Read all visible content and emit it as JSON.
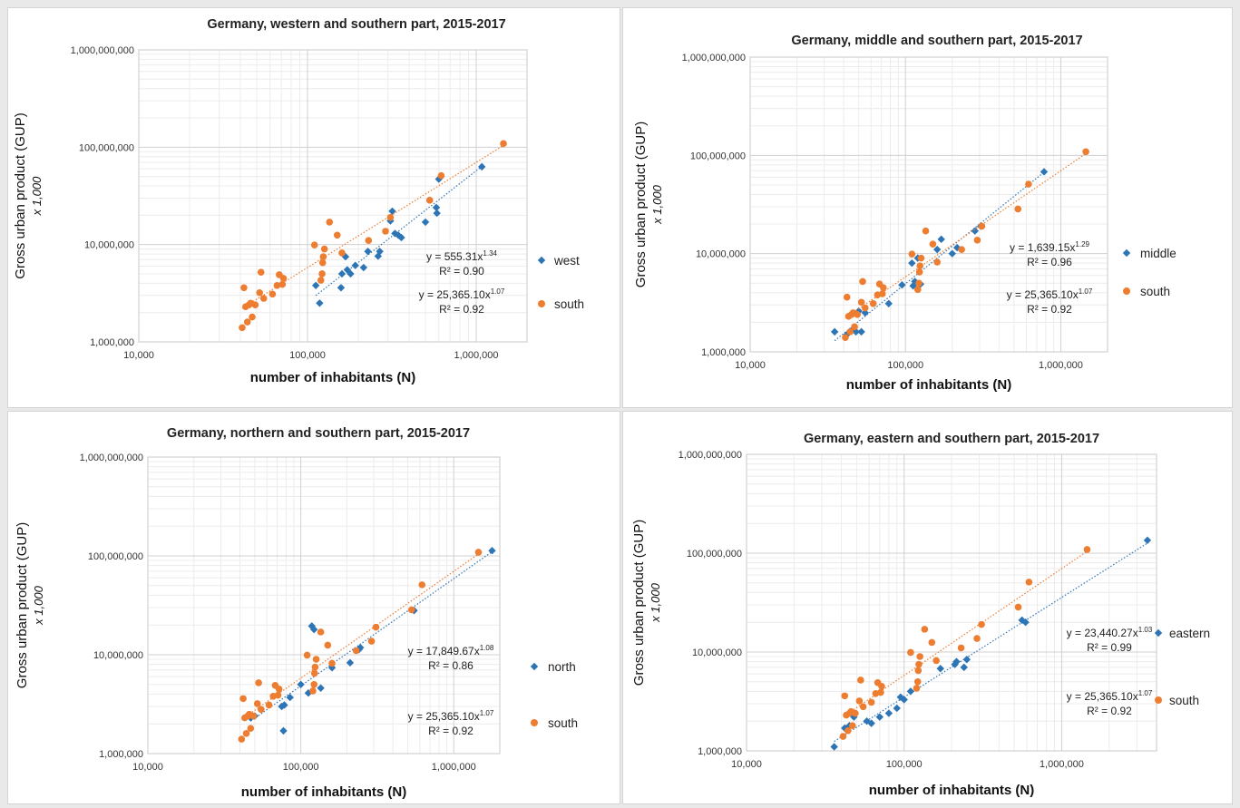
{
  "colors": {
    "series1": "#2e75b6",
    "series2": "#ed7d31",
    "grid_major": "#d0d0d0",
    "grid_minor": "#ececec"
  },
  "chart_data": [
    {
      "type": "scatter",
      "title": "Germany, western and southern part, 2015-2017",
      "xlabel": "number of inhabitants (N)",
      "ylabel": "Gross urban product (GUP)",
      "ylabel_sub": "x 1,000",
      "x_scale": "log",
      "y_scale": "log",
      "xlim": [
        10000,
        2000000
      ],
      "ylim": [
        1000000,
        1000000000
      ],
      "x_ticks": [
        "10,000",
        "100,000",
        "1,000,000"
      ],
      "y_ticks": [
        "1,000,000",
        "10,000,000",
        "100,000,000",
        "1,000,000,000"
      ],
      "legend_position": "right",
      "series": [
        {
          "name": "west",
          "marker": "diamond",
          "trend": "power",
          "equation": "y = 555.31x",
          "exponent": "1.34",
          "r2": "R² = 0.90",
          "points": [
            [
              112000,
              3800000
            ],
            [
              118000,
              2500000
            ],
            [
              158000,
              3600000
            ],
            [
              160000,
              5000000
            ],
            [
              168000,
              7500000
            ],
            [
              172000,
              5500000
            ],
            [
              180000,
              5000000
            ],
            [
              192000,
              6100000
            ],
            [
              215000,
              5800000
            ],
            [
              228000,
              8500000
            ],
            [
              262000,
              7600000
            ],
            [
              268000,
              8500000
            ],
            [
              310000,
              17500000
            ],
            [
              318000,
              22000000
            ],
            [
              330000,
              13000000
            ],
            [
              345000,
              12500000
            ],
            [
              360000,
              11800000
            ],
            [
              500000,
              17000000
            ],
            [
              580000,
              24000000
            ],
            [
              585000,
              21000000
            ],
            [
              600000,
              47000000
            ],
            [
              1080000,
              63000000
            ]
          ]
        },
        {
          "name": "south",
          "marker": "circle",
          "trend": "power",
          "equation": "y = 25,365.10x",
          "exponent": "1.07",
          "r2": "R² = 0.92",
          "points": [
            [
              41000,
              1400000
            ],
            [
              42000,
              3600000
            ],
            [
              43000,
              2300000
            ],
            [
              44000,
              1600000
            ],
            [
              45000,
              2400000
            ],
            [
              46000,
              2500000
            ],
            [
              47000,
              1800000
            ],
            [
              49000,
              2400000
            ],
            [
              52000,
              3200000
            ],
            [
              53000,
              5200000
            ],
            [
              55000,
              2800000
            ],
            [
              62000,
              3100000
            ],
            [
              66000,
              3800000
            ],
            [
              68000,
              4900000
            ],
            [
              71000,
              3900000
            ],
            [
              72000,
              4500000
            ],
            [
              110000,
              9900000
            ],
            [
              120000,
              4300000
            ],
            [
              122000,
              5000000
            ],
            [
              123000,
              6500000
            ],
            [
              124000,
              7500000
            ],
            [
              126000,
              9000000
            ],
            [
              135000,
              17000000
            ],
            [
              150000,
              12500000
            ],
            [
              160000,
              8200000
            ],
            [
              230000,
              11000000
            ],
            [
              290000,
              13700000
            ],
            [
              310000,
              19000000
            ],
            [
              530000,
              28500000
            ],
            [
              620000,
              51000000
            ],
            [
              1450000,
              109000000
            ]
          ]
        }
      ]
    },
    {
      "type": "scatter",
      "title": "Germany, middle and southern part, 2015-2017",
      "xlabel": "number of inhabitants (N)",
      "ylabel": "Gross urban product (GUP)",
      "ylabel_sub": "x 1,000",
      "x_scale": "log",
      "y_scale": "log",
      "xlim": [
        10000,
        2000000
      ],
      "ylim": [
        1000000,
        1000000000
      ],
      "x_ticks": [
        "10,000",
        "100,000",
        "1,000,000"
      ],
      "y_ticks": [
        "1,000,000",
        "10,000,000",
        "100,000,000",
        "1,000,000,000"
      ],
      "legend_position": "right",
      "series": [
        {
          "name": "middle",
          "marker": "diamond",
          "trend": "power",
          "equation": "y = 1,639.15x",
          "exponent": "1.29",
          "r2": "R² = 0.96",
          "points": [
            [
              35000,
              1600000
            ],
            [
              42000,
              1500000
            ],
            [
              46000,
              1700000
            ],
            [
              48000,
              1600000
            ],
            [
              50000,
              2600000
            ],
            [
              52000,
              1600000
            ],
            [
              55000,
              2500000
            ],
            [
              78000,
              3100000
            ],
            [
              95000,
              4800000
            ],
            [
              110000,
              8000000
            ],
            [
              112000,
              4700000
            ],
            [
              115000,
              5200000
            ],
            [
              120000,
              9000000
            ],
            [
              125000,
              4900000
            ],
            [
              160000,
              11000000
            ],
            [
              170000,
              14000000
            ],
            [
              200000,
              10000000
            ],
            [
              215000,
              11500000
            ],
            [
              280000,
              17000000
            ],
            [
              305000,
              19000000
            ],
            [
              780000,
              68000000
            ]
          ]
        },
        {
          "name": "south",
          "marker": "circle",
          "trend": "power",
          "equation": "y = 25,365.10x",
          "exponent": "1.07",
          "r2": "R² = 0.92",
          "points": [
            [
              41000,
              1400000
            ],
            [
              42000,
              3600000
            ],
            [
              43000,
              2300000
            ],
            [
              44000,
              1600000
            ],
            [
              45000,
              2400000
            ],
            [
              46000,
              2500000
            ],
            [
              47000,
              1800000
            ],
            [
              49000,
              2400000
            ],
            [
              52000,
              3200000
            ],
            [
              53000,
              5200000
            ],
            [
              55000,
              2800000
            ],
            [
              62000,
              3100000
            ],
            [
              66000,
              3800000
            ],
            [
              68000,
              4900000
            ],
            [
              71000,
              3900000
            ],
            [
              72000,
              4500000
            ],
            [
              110000,
              9900000
            ],
            [
              120000,
              4300000
            ],
            [
              122000,
              5000000
            ],
            [
              123000,
              6500000
            ],
            [
              124000,
              7500000
            ],
            [
              126000,
              9000000
            ],
            [
              135000,
              17000000
            ],
            [
              150000,
              12500000
            ],
            [
              160000,
              8200000
            ],
            [
              230000,
              11000000
            ],
            [
              290000,
              13700000
            ],
            [
              310000,
              19000000
            ],
            [
              530000,
              28500000
            ],
            [
              620000,
              51000000
            ],
            [
              1450000,
              109000000
            ]
          ]
        }
      ]
    },
    {
      "type": "scatter",
      "title": "Germany, northern and southern part, 2015-2017",
      "xlabel": "number of inhabitants (N)",
      "ylabel": "Gross urban product (GUP)",
      "ylabel_sub": "x 1,000",
      "x_scale": "log",
      "y_scale": "log",
      "xlim": [
        10000,
        2000000
      ],
      "ylim": [
        1000000,
        1000000000
      ],
      "x_ticks": [
        "10,000",
        "100,000",
        "1,000,000"
      ],
      "y_ticks": [
        "1,000,000",
        "10,000,000",
        "100,000,000",
        "1,000,000,000"
      ],
      "legend_position": "right",
      "series": [
        {
          "name": "north",
          "marker": "diamond",
          "trend": "power",
          "equation": "y = 17,849.67x",
          "exponent": "1.08",
          "r2": "R² = 0.86",
          "points": [
            [
              47000,
              2300000
            ],
            [
              50000,
              2400000
            ],
            [
              75000,
              3000000
            ],
            [
              77000,
              1700000
            ],
            [
              78000,
              3100000
            ],
            [
              85000,
              3700000
            ],
            [
              100000,
              5000000
            ],
            [
              112000,
              4100000
            ],
            [
              118000,
              19500000
            ],
            [
              122000,
              18000000
            ],
            [
              135000,
              4600000
            ],
            [
              160000,
              7400000
            ],
            [
              210000,
              8300000
            ],
            [
              240000,
              11300000
            ],
            [
              245000,
              11800000
            ],
            [
              550000,
              28000000
            ],
            [
              1780000,
              113000000
            ]
          ]
        },
        {
          "name": "south",
          "marker": "circle",
          "trend": "power",
          "equation": "y = 25,365.10x",
          "exponent": "1.07",
          "r2": "R² = 0.92",
          "points": [
            [
              41000,
              1400000
            ],
            [
              42000,
              3600000
            ],
            [
              43000,
              2300000
            ],
            [
              44000,
              1600000
            ],
            [
              45000,
              2400000
            ],
            [
              46000,
              2500000
            ],
            [
              47000,
              1800000
            ],
            [
              49000,
              2400000
            ],
            [
              52000,
              3200000
            ],
            [
              53000,
              5200000
            ],
            [
              55000,
              2800000
            ],
            [
              62000,
              3100000
            ],
            [
              66000,
              3800000
            ],
            [
              68000,
              4900000
            ],
            [
              71000,
              3900000
            ],
            [
              72000,
              4500000
            ],
            [
              110000,
              9900000
            ],
            [
              120000,
              4300000
            ],
            [
              122000,
              5000000
            ],
            [
              123000,
              6500000
            ],
            [
              124000,
              7500000
            ],
            [
              126000,
              9000000
            ],
            [
              135000,
              17000000
            ],
            [
              150000,
              12500000
            ],
            [
              160000,
              8200000
            ],
            [
              230000,
              11000000
            ],
            [
              290000,
              13700000
            ],
            [
              310000,
              19000000
            ],
            [
              530000,
              28500000
            ],
            [
              620000,
              51000000
            ],
            [
              1450000,
              109000000
            ]
          ]
        }
      ]
    },
    {
      "type": "scatter",
      "title": "Germany, eastern and southern part, 2015-2017",
      "xlabel": "number of inhabitants (N)",
      "ylabel": "Gross urban product (GUP)",
      "ylabel_sub": "x 1,000",
      "x_scale": "log",
      "y_scale": "log",
      "xlim": [
        10000,
        4000000
      ],
      "ylim": [
        1000000,
        1000000000
      ],
      "x_ticks": [
        "10,000",
        "100,000",
        "1,000,000"
      ],
      "y_ticks": [
        "1,000,000",
        "10,000,000",
        "100,000,000",
        "1,000,000,000"
      ],
      "legend_position": "right",
      "series": [
        {
          "name": "eastern",
          "marker": "diamond",
          "trend": "power",
          "equation": "y = 23,440.27x",
          "exponent": "1.03",
          "r2": "R² = 0.99",
          "points": [
            [
              36000,
              1100000
            ],
            [
              42000,
              1700000
            ],
            [
              45000,
              1800000
            ],
            [
              48000,
              2200000
            ],
            [
              58000,
              2000000
            ],
            [
              62000,
              1900000
            ],
            [
              70000,
              2200000
            ],
            [
              80000,
              2400000
            ],
            [
              90000,
              2700000
            ],
            [
              95000,
              3500000
            ],
            [
              100000,
              3300000
            ],
            [
              110000,
              4000000
            ],
            [
              170000,
              6800000
            ],
            [
              210000,
              7500000
            ],
            [
              215000,
              8000000
            ],
            [
              240000,
              7000000
            ],
            [
              250000,
              8400000
            ],
            [
              560000,
              21000000
            ],
            [
              590000,
              20000000
            ],
            [
              3500000,
              135000000
            ]
          ]
        },
        {
          "name": "south",
          "marker": "circle",
          "trend": "power",
          "equation": "y = 25,365.10x",
          "exponent": "1.07",
          "r2": "R² = 0.92",
          "points": [
            [
              41000,
              1400000
            ],
            [
              42000,
              3600000
            ],
            [
              43000,
              2300000
            ],
            [
              44000,
              1600000
            ],
            [
              45000,
              2400000
            ],
            [
              46000,
              2500000
            ],
            [
              47000,
              1800000
            ],
            [
              49000,
              2400000
            ],
            [
              52000,
              3200000
            ],
            [
              53000,
              5200000
            ],
            [
              55000,
              2800000
            ],
            [
              62000,
              3100000
            ],
            [
              66000,
              3800000
            ],
            [
              68000,
              4900000
            ],
            [
              71000,
              3900000
            ],
            [
              72000,
              4500000
            ],
            [
              110000,
              9900000
            ],
            [
              120000,
              4300000
            ],
            [
              122000,
              5000000
            ],
            [
              123000,
              6500000
            ],
            [
              124000,
              7500000
            ],
            [
              126000,
              9000000
            ],
            [
              135000,
              17000000
            ],
            [
              150000,
              12500000
            ],
            [
              160000,
              8200000
            ],
            [
              230000,
              11000000
            ],
            [
              290000,
              13700000
            ],
            [
              310000,
              19000000
            ],
            [
              530000,
              28500000
            ],
            [
              620000,
              51000000
            ],
            [
              1450000,
              109000000
            ]
          ]
        }
      ]
    }
  ]
}
